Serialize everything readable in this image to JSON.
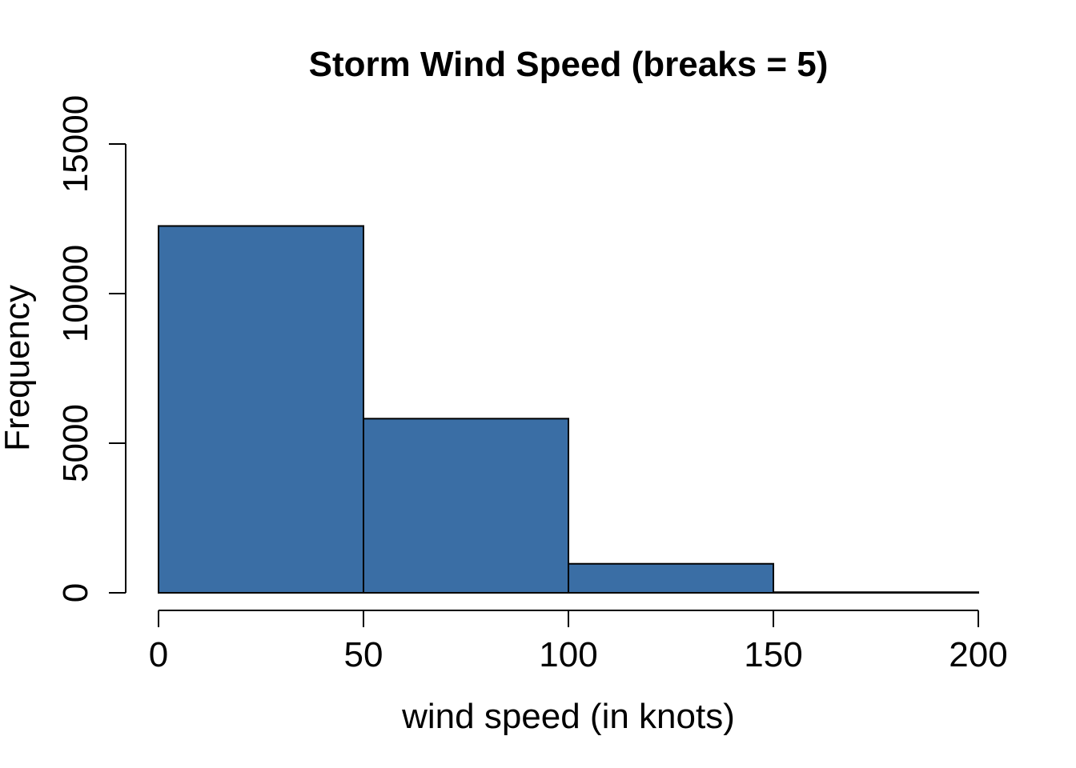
{
  "chart_data": {
    "type": "bar",
    "title": "Storm Wind Speed (breaks = 5)",
    "xlabel": "wind speed (in knots)",
    "ylabel": "Frequency",
    "bin_edges": [
      0,
      50,
      100,
      150,
      200
    ],
    "values": [
      12260,
      5820,
      970,
      20
    ],
    "xlim": [
      0,
      200
    ],
    "ylim": [
      0,
      15000
    ],
    "xticks": [
      "0",
      "50",
      "100",
      "150",
      "200"
    ],
    "yticks": [
      "0",
      "5000",
      "10000",
      "15000"
    ],
    "bar_color": "#3A6EA5",
    "grid": false
  }
}
